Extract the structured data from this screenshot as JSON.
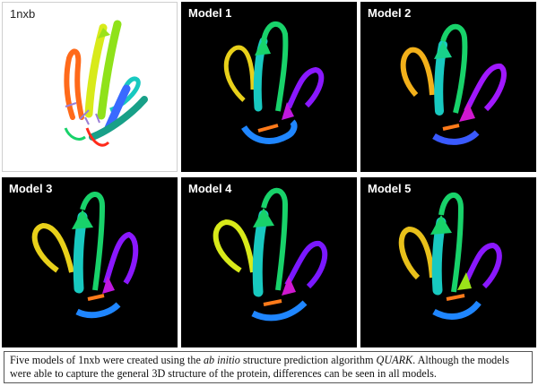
{
  "panels": [
    {
      "label": "1nxb"
    },
    {
      "label": "Model 1"
    },
    {
      "label": "Model 2"
    },
    {
      "label": "Model 3"
    },
    {
      "label": "Model 4"
    },
    {
      "label": "Model 5"
    }
  ],
  "caption": {
    "part1": "Five models of 1nxb were created using the ",
    "italic1": "ab initio",
    "part2": " structure prediction algorithm ",
    "italic2": "QUARK",
    "part3": ". Although the models were able to capture the general 3D structure of the protein, differences can be seen in all models."
  },
  "colors": {
    "dark_background": "#000000",
    "rainbow": [
      "#ff3b1f",
      "#ff8a1a",
      "#f2e21a",
      "#9be21a",
      "#18d26a",
      "#18c9c0",
      "#1f86ff",
      "#3a3aff",
      "#b018ff"
    ]
  },
  "icons": [
    "protein-ribbon-image"
  ]
}
